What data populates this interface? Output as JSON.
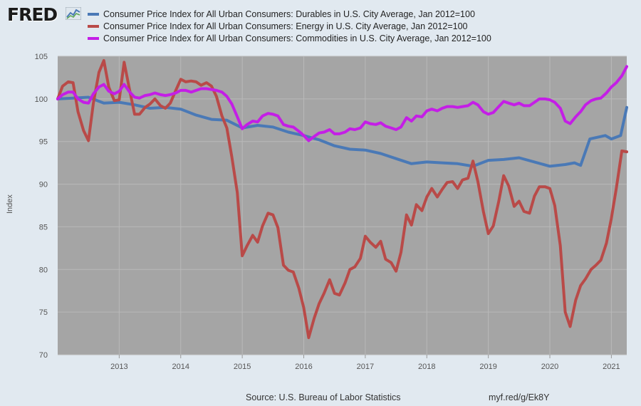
{
  "brand": {
    "logo_text": "FRED"
  },
  "colors": {
    "durables": "#4a79b6",
    "energy": "#b94a48",
    "commodities": "#c41ee6",
    "plot_bg": "#a5a5a5",
    "page_bg": "#e1e9f0"
  },
  "footer": {
    "source": "Source: U.S. Bureau of Labor Statistics",
    "url": "myf.red/g/Ek8Y"
  },
  "chart_data": {
    "type": "line",
    "ylabel": "Index",
    "xlabel": "",
    "ylim": [
      70,
      105
    ],
    "yticks": [
      "70",
      "75",
      "80",
      "85",
      "90",
      "95",
      "100",
      "105"
    ],
    "xlim": [
      2012.0,
      2021.25
    ],
    "xticks": [
      "2013",
      "2014",
      "2015",
      "2016",
      "2017",
      "2018",
      "2019",
      "2020",
      "2021"
    ],
    "grid": true,
    "legend": "top",
    "series": [
      {
        "name": "Consumer Price Index for All Urban Consumers: Durables in U.S. City Average, Jan 2012=100",
        "color": "#4a79b6",
        "x": [
          2012.0,
          2012.25,
          2012.5,
          2012.75,
          2013.0,
          2013.25,
          2013.5,
          2013.75,
          2014.0,
          2014.25,
          2014.5,
          2014.75,
          2015.0,
          2015.25,
          2015.5,
          2015.75,
          2016.0,
          2016.25,
          2016.5,
          2016.75,
          2017.0,
          2017.25,
          2017.5,
          2017.75,
          2018.0,
          2018.25,
          2018.5,
          2018.75,
          2019.0,
          2019.25,
          2019.5,
          2019.75,
          2020.0,
          2020.25,
          2020.4,
          2020.5,
          2020.65,
          2020.9,
          2021.0,
          2021.15,
          2021.25
        ],
        "y": [
          100.0,
          100.1,
          100.2,
          99.5,
          99.6,
          99.3,
          98.9,
          99.0,
          98.8,
          98.1,
          97.6,
          97.5,
          96.6,
          96.9,
          96.7,
          96.1,
          95.7,
          95.2,
          94.5,
          94.1,
          94.0,
          93.6,
          93.0,
          92.4,
          92.6,
          92.5,
          92.4,
          92.1,
          92.8,
          92.9,
          93.1,
          92.6,
          92.1,
          92.3,
          92.5,
          92.2,
          95.3,
          95.7,
          95.3,
          95.7,
          99.0
        ]
      },
      {
        "name": "Consumer Price Index for All Urban Consumers: Energy in U.S. City Average, Jan 2012=100",
        "color": "#b94a48",
        "x": [
          2012.0,
          2012.08,
          2012.17,
          2012.25,
          2012.33,
          2012.42,
          2012.5,
          2012.58,
          2012.67,
          2012.75,
          2012.83,
          2012.92,
          2013.0,
          2013.08,
          2013.17,
          2013.25,
          2013.33,
          2013.42,
          2013.5,
          2013.58,
          2013.67,
          2013.75,
          2013.83,
          2013.92,
          2014.0,
          2014.08,
          2014.17,
          2014.25,
          2014.33,
          2014.42,
          2014.5,
          2014.58,
          2014.67,
          2014.75,
          2014.83,
          2014.92,
          2015.0,
          2015.08,
          2015.17,
          2015.25,
          2015.33,
          2015.42,
          2015.5,
          2015.58,
          2015.67,
          2015.75,
          2015.83,
          2015.92,
          2016.0,
          2016.08,
          2016.17,
          2016.25,
          2016.33,
          2016.42,
          2016.5,
          2016.58,
          2016.67,
          2016.75,
          2016.83,
          2016.92,
          2017.0,
          2017.08,
          2017.17,
          2017.25,
          2017.33,
          2017.42,
          2017.5,
          2017.58,
          2017.67,
          2017.75,
          2017.83,
          2017.92,
          2018.0,
          2018.08,
          2018.17,
          2018.25,
          2018.33,
          2018.42,
          2018.5,
          2018.58,
          2018.67,
          2018.75,
          2018.83,
          2018.92,
          2019.0,
          2019.08,
          2019.17,
          2019.25,
          2019.33,
          2019.42,
          2019.5,
          2019.58,
          2019.67,
          2019.75,
          2019.83,
          2019.92,
          2020.0,
          2020.08,
          2020.17,
          2020.25,
          2020.33,
          2020.42,
          2020.5,
          2020.58,
          2020.67,
          2020.75,
          2020.83,
          2020.92,
          2021.0,
          2021.08,
          2021.17,
          2021.25
        ],
        "y": [
          100.0,
          101.5,
          102.0,
          101.9,
          98.5,
          96.3,
          95.1,
          99.5,
          103.1,
          104.5,
          101.4,
          99.8,
          99.9,
          104.3,
          101.0,
          98.2,
          98.2,
          99.0,
          99.4,
          100.0,
          99.2,
          98.9,
          99.5,
          101.0,
          102.3,
          102.0,
          102.1,
          102.0,
          101.6,
          101.9,
          101.5,
          100.3,
          98.0,
          96.6,
          93.2,
          89.0,
          81.6,
          82.8,
          84.0,
          83.2,
          85.1,
          86.6,
          86.4,
          84.9,
          80.5,
          79.9,
          79.7,
          77.8,
          75.5,
          72.0,
          74.3,
          76.0,
          77.2,
          78.8,
          77.2,
          77.0,
          78.4,
          80.0,
          80.3,
          81.3,
          83.9,
          83.2,
          82.6,
          83.3,
          81.2,
          80.8,
          79.8,
          82.0,
          86.4,
          85.2,
          87.6,
          86.9,
          88.5,
          89.5,
          88.5,
          89.4,
          90.2,
          90.3,
          89.5,
          90.5,
          90.7,
          92.7,
          90.3,
          86.8,
          84.2,
          85.1,
          88.0,
          91.0,
          89.8,
          87.4,
          88.0,
          86.8,
          86.6,
          88.6,
          89.7,
          89.7,
          89.5,
          87.5,
          82.8,
          75.0,
          73.3,
          76.4,
          78.1,
          78.9,
          80.0,
          80.5,
          81.1,
          83.1,
          86.0,
          89.5,
          93.9,
          93.8
        ]
      },
      {
        "name": "Consumer Price Index for All Urban Consumers: Commodities in U.S. City Average, Jan 2012=100",
        "color": "#c41ee6",
        "x": [
          2012.0,
          2012.08,
          2012.17,
          2012.25,
          2012.33,
          2012.42,
          2012.5,
          2012.58,
          2012.67,
          2012.75,
          2012.83,
          2012.92,
          2013.0,
          2013.08,
          2013.17,
          2013.25,
          2013.33,
          2013.42,
          2013.5,
          2013.58,
          2013.67,
          2013.75,
          2013.83,
          2013.92,
          2014.0,
          2014.08,
          2014.17,
          2014.25,
          2014.33,
          2014.42,
          2014.5,
          2014.58,
          2014.67,
          2014.75,
          2014.83,
          2014.92,
          2015.0,
          2015.08,
          2015.17,
          2015.25,
          2015.33,
          2015.42,
          2015.5,
          2015.58,
          2015.67,
          2015.75,
          2015.83,
          2015.92,
          2016.0,
          2016.08,
          2016.17,
          2016.25,
          2016.33,
          2016.42,
          2016.5,
          2016.58,
          2016.67,
          2016.75,
          2016.83,
          2016.92,
          2017.0,
          2017.08,
          2017.17,
          2017.25,
          2017.33,
          2017.42,
          2017.5,
          2017.58,
          2017.67,
          2017.75,
          2017.83,
          2017.92,
          2018.0,
          2018.08,
          2018.17,
          2018.25,
          2018.33,
          2018.42,
          2018.5,
          2018.58,
          2018.67,
          2018.75,
          2018.83,
          2018.92,
          2019.0,
          2019.08,
          2019.17,
          2019.25,
          2019.33,
          2019.42,
          2019.5,
          2019.58,
          2019.67,
          2019.75,
          2019.83,
          2019.92,
          2020.0,
          2020.08,
          2020.17,
          2020.25,
          2020.33,
          2020.42,
          2020.5,
          2020.58,
          2020.67,
          2020.75,
          2020.83,
          2020.92,
          2021.0,
          2021.08,
          2021.17,
          2021.25
        ],
        "y": [
          100.0,
          100.5,
          100.8,
          100.8,
          100.0,
          99.6,
          99.5,
          100.6,
          101.4,
          101.7,
          100.9,
          100.6,
          100.9,
          101.7,
          100.8,
          100.2,
          100.1,
          100.4,
          100.5,
          100.7,
          100.5,
          100.4,
          100.5,
          100.7,
          101.0,
          101.0,
          100.8,
          101.0,
          101.2,
          101.2,
          101.1,
          101.0,
          100.8,
          100.3,
          99.4,
          97.9,
          96.5,
          97.0,
          97.4,
          97.3,
          98.0,
          98.3,
          98.2,
          98.0,
          97.0,
          96.8,
          96.7,
          96.2,
          95.7,
          95.1,
          95.6,
          96.0,
          96.1,
          96.4,
          95.9,
          95.9,
          96.1,
          96.5,
          96.4,
          96.6,
          97.3,
          97.1,
          97.0,
          97.2,
          96.8,
          96.6,
          96.4,
          96.7,
          97.8,
          97.4,
          98.0,
          97.9,
          98.6,
          98.8,
          98.6,
          98.9,
          99.1,
          99.1,
          99.0,
          99.1,
          99.2,
          99.6,
          99.3,
          98.5,
          98.2,
          98.4,
          99.1,
          99.7,
          99.5,
          99.3,
          99.5,
          99.2,
          99.2,
          99.6,
          100.0,
          100.0,
          99.9,
          99.6,
          98.9,
          97.4,
          97.1,
          97.9,
          98.5,
          99.3,
          99.8,
          100.0,
          100.1,
          100.7,
          101.4,
          101.9,
          102.7,
          103.8
        ]
      }
    ]
  }
}
